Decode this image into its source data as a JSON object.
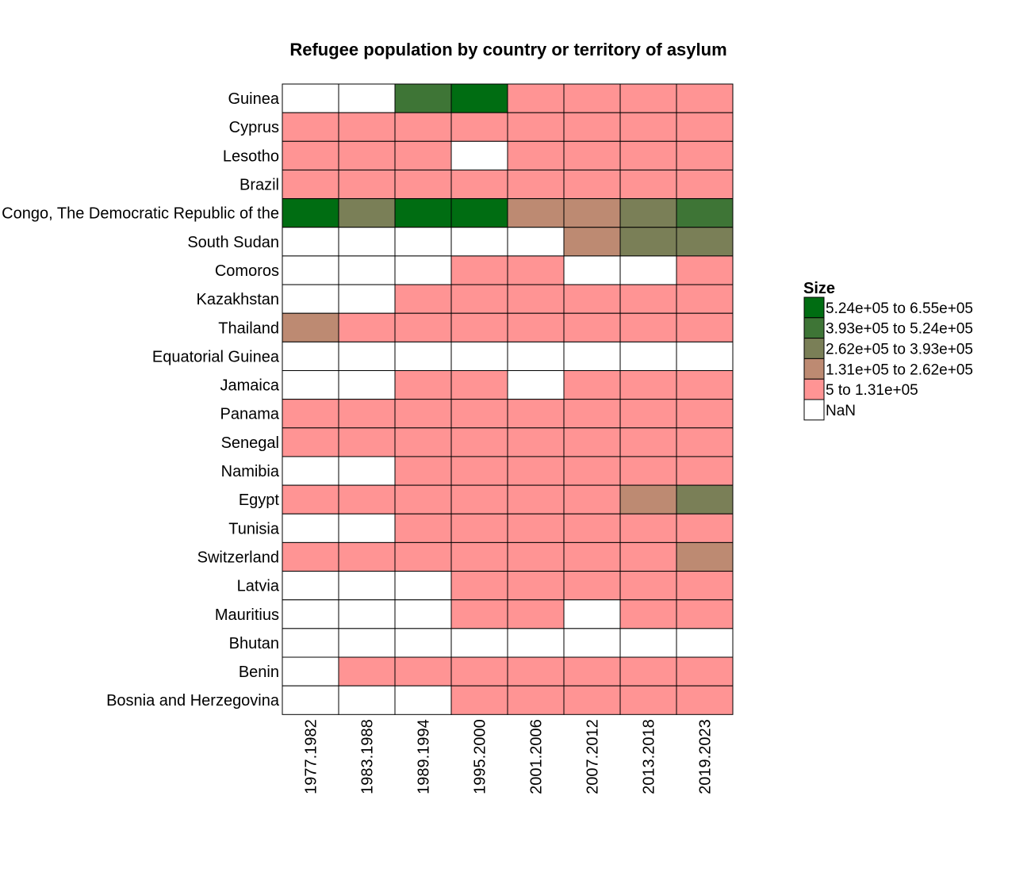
{
  "chart_data": {
    "type": "heatmap",
    "title": "Refugee population by country or territory of asylum",
    "xlabel": "",
    "ylabel": "",
    "x_categories": [
      "1977.1982",
      "1983.1988",
      "1989.1994",
      "1995.2000",
      "2001.2006",
      "2007.2012",
      "2013.2018",
      "2019.2023"
    ],
    "y_categories": [
      "Guinea",
      "Cyprus",
      "Lesotho",
      "Brazil",
      "Congo, The Democratic Republic of the",
      "South Sudan",
      "Comoros",
      "Kazakhstan",
      "Thailand",
      "Equatorial Guinea",
      "Jamaica",
      "Panama",
      "Senegal",
      "Namibia",
      "Egypt",
      "Tunisia",
      "Switzerland",
      "Latvia",
      "Mauritius",
      "Bhutan",
      "Benin",
      "Bosnia and Herzegovina"
    ],
    "bins": [
      {
        "label": "5.24e+05 to 6.55e+05",
        "color": "#006d12"
      },
      {
        "label": "3.93e+05 to 5.24e+05",
        "color": "#3e7536"
      },
      {
        "label": "2.62e+05 to 3.93e+05",
        "color": "#7a7f57"
      },
      {
        "label": "1.31e+05 to 2.62e+05",
        "color": "#bd8a72"
      },
      {
        "label": "5 to 1.31e+05",
        "color": "#ff9494"
      },
      {
        "label": "NaN",
        "color": "#ffffff"
      }
    ],
    "cells": [
      [
        "NaN",
        "NaN",
        "3.93e+05 to 5.24e+05",
        "5.24e+05 to 6.55e+05",
        "5 to 1.31e+05",
        "5 to 1.31e+05",
        "5 to 1.31e+05",
        "5 to 1.31e+05"
      ],
      [
        "5 to 1.31e+05",
        "5 to 1.31e+05",
        "5 to 1.31e+05",
        "5 to 1.31e+05",
        "5 to 1.31e+05",
        "5 to 1.31e+05",
        "5 to 1.31e+05",
        "5 to 1.31e+05"
      ],
      [
        "5 to 1.31e+05",
        "5 to 1.31e+05",
        "5 to 1.31e+05",
        "NaN",
        "5 to 1.31e+05",
        "5 to 1.31e+05",
        "5 to 1.31e+05",
        "5 to 1.31e+05"
      ],
      [
        "5 to 1.31e+05",
        "5 to 1.31e+05",
        "5 to 1.31e+05",
        "5 to 1.31e+05",
        "5 to 1.31e+05",
        "5 to 1.31e+05",
        "5 to 1.31e+05",
        "5 to 1.31e+05"
      ],
      [
        "5.24e+05 to 6.55e+05",
        "2.62e+05 to 3.93e+05",
        "5.24e+05 to 6.55e+05",
        "5.24e+05 to 6.55e+05",
        "1.31e+05 to 2.62e+05",
        "1.31e+05 to 2.62e+05",
        "2.62e+05 to 3.93e+05",
        "3.93e+05 to 5.24e+05"
      ],
      [
        "NaN",
        "NaN",
        "NaN",
        "NaN",
        "NaN",
        "1.31e+05 to 2.62e+05",
        "2.62e+05 to 3.93e+05",
        "2.62e+05 to 3.93e+05"
      ],
      [
        "NaN",
        "NaN",
        "NaN",
        "5 to 1.31e+05",
        "5 to 1.31e+05",
        "NaN",
        "NaN",
        "5 to 1.31e+05"
      ],
      [
        "NaN",
        "NaN",
        "5 to 1.31e+05",
        "5 to 1.31e+05",
        "5 to 1.31e+05",
        "5 to 1.31e+05",
        "5 to 1.31e+05",
        "5 to 1.31e+05"
      ],
      [
        "1.31e+05 to 2.62e+05",
        "5 to 1.31e+05",
        "5 to 1.31e+05",
        "5 to 1.31e+05",
        "5 to 1.31e+05",
        "5 to 1.31e+05",
        "5 to 1.31e+05",
        "5 to 1.31e+05"
      ],
      [
        "NaN",
        "NaN",
        "NaN",
        "NaN",
        "NaN",
        "NaN",
        "NaN",
        "NaN"
      ],
      [
        "NaN",
        "NaN",
        "5 to 1.31e+05",
        "5 to 1.31e+05",
        "NaN",
        "5 to 1.31e+05",
        "5 to 1.31e+05",
        "5 to 1.31e+05"
      ],
      [
        "5 to 1.31e+05",
        "5 to 1.31e+05",
        "5 to 1.31e+05",
        "5 to 1.31e+05",
        "5 to 1.31e+05",
        "5 to 1.31e+05",
        "5 to 1.31e+05",
        "5 to 1.31e+05"
      ],
      [
        "5 to 1.31e+05",
        "5 to 1.31e+05",
        "5 to 1.31e+05",
        "5 to 1.31e+05",
        "5 to 1.31e+05",
        "5 to 1.31e+05",
        "5 to 1.31e+05",
        "5 to 1.31e+05"
      ],
      [
        "NaN",
        "NaN",
        "5 to 1.31e+05",
        "5 to 1.31e+05",
        "5 to 1.31e+05",
        "5 to 1.31e+05",
        "5 to 1.31e+05",
        "5 to 1.31e+05"
      ],
      [
        "5 to 1.31e+05",
        "5 to 1.31e+05",
        "5 to 1.31e+05",
        "5 to 1.31e+05",
        "5 to 1.31e+05",
        "5 to 1.31e+05",
        "1.31e+05 to 2.62e+05",
        "2.62e+05 to 3.93e+05"
      ],
      [
        "NaN",
        "NaN",
        "5 to 1.31e+05",
        "5 to 1.31e+05",
        "5 to 1.31e+05",
        "5 to 1.31e+05",
        "5 to 1.31e+05",
        "5 to 1.31e+05"
      ],
      [
        "5 to 1.31e+05",
        "5 to 1.31e+05",
        "5 to 1.31e+05",
        "5 to 1.31e+05",
        "5 to 1.31e+05",
        "5 to 1.31e+05",
        "5 to 1.31e+05",
        "1.31e+05 to 2.62e+05"
      ],
      [
        "NaN",
        "NaN",
        "NaN",
        "5 to 1.31e+05",
        "5 to 1.31e+05",
        "5 to 1.31e+05",
        "5 to 1.31e+05",
        "5 to 1.31e+05"
      ],
      [
        "NaN",
        "NaN",
        "NaN",
        "5 to 1.31e+05",
        "5 to 1.31e+05",
        "NaN",
        "5 to 1.31e+05",
        "5 to 1.31e+05"
      ],
      [
        "NaN",
        "NaN",
        "NaN",
        "NaN",
        "NaN",
        "NaN",
        "NaN",
        "NaN"
      ],
      [
        "NaN",
        "5 to 1.31e+05",
        "5 to 1.31e+05",
        "5 to 1.31e+05",
        "5 to 1.31e+05",
        "5 to 1.31e+05",
        "5 to 1.31e+05",
        "5 to 1.31e+05"
      ],
      [
        "NaN",
        "NaN",
        "NaN",
        "5 to 1.31e+05",
        "5 to 1.31e+05",
        "5 to 1.31e+05",
        "5 to 1.31e+05",
        "5 to 1.31e+05"
      ]
    ],
    "legend": {
      "title": "Size",
      "placement": "right"
    },
    "grid": false
  }
}
